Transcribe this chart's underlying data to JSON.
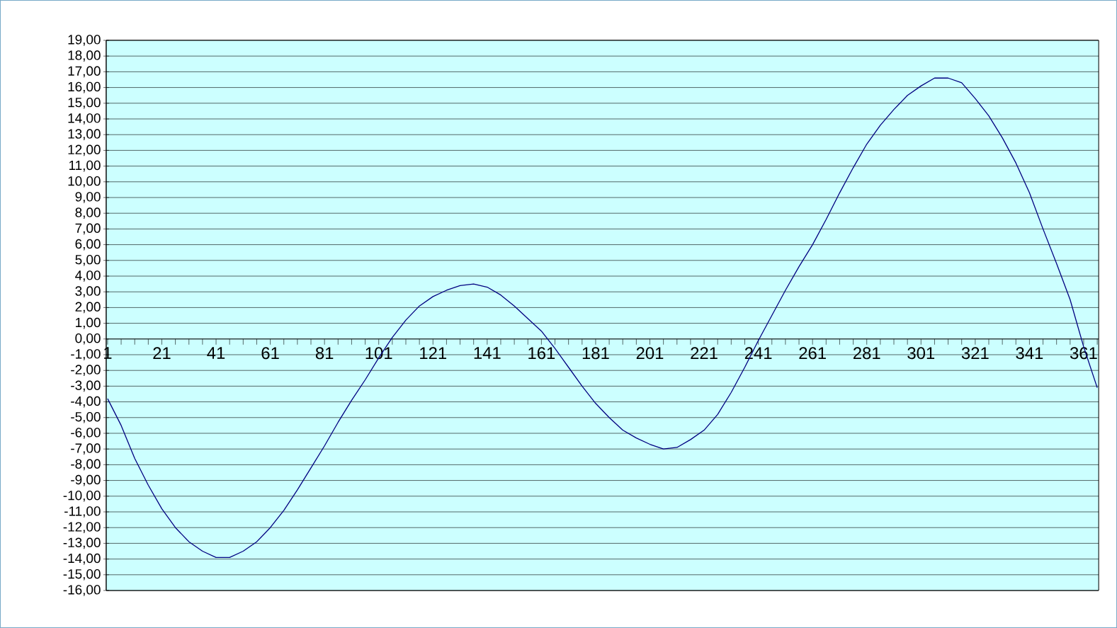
{
  "chart_data": {
    "type": "line",
    "x": [
      1,
      6,
      11,
      16,
      21,
      26,
      31,
      36,
      41,
      46,
      51,
      56,
      61,
      66,
      71,
      76,
      81,
      86,
      91,
      96,
      101,
      106,
      111,
      116,
      121,
      126,
      131,
      136,
      141,
      146,
      151,
      156,
      161,
      166,
      171,
      176,
      181,
      186,
      191,
      196,
      201,
      206,
      211,
      216,
      221,
      226,
      231,
      236,
      241,
      246,
      251,
      256,
      261,
      266,
      271,
      276,
      281,
      286,
      291,
      296,
      301,
      306,
      311,
      316,
      321,
      326,
      331,
      336,
      341,
      346,
      351,
      356,
      361,
      366
    ],
    "series": [
      {
        "color": "#000080",
        "values": [
          -3.8,
          -5.5,
          -7.6,
          -9.3,
          -10.8,
          -12.0,
          -12.9,
          -13.5,
          -13.9,
          -13.9,
          -13.5,
          -12.9,
          -12.0,
          -10.9,
          -9.6,
          -8.2,
          -6.8,
          -5.3,
          -3.9,
          -2.6,
          -1.2,
          0.1,
          1.2,
          2.1,
          2.7,
          3.1,
          3.4,
          3.5,
          3.3,
          2.8,
          2.1,
          1.3,
          0.5,
          -0.6,
          -1.8,
          -3.0,
          -4.1,
          -5.0,
          -5.8,
          -6.3,
          -6.7,
          -7.0,
          -6.9,
          -6.4,
          -5.8,
          -4.8,
          -3.4,
          -1.8,
          -0.1,
          1.5,
          3.1,
          4.6,
          6.0,
          7.6,
          9.3,
          10.9,
          12.4,
          13.6,
          14.6,
          15.5,
          16.1,
          16.6,
          16.6,
          16.3,
          15.3,
          14.2,
          12.8,
          11.2,
          9.3,
          7.0,
          4.8,
          2.5,
          -0.5,
          -3.1
        ]
      }
    ],
    "xlim": [
      0.5,
      366.5
    ],
    "ylim": [
      -16,
      19
    ],
    "xticks": [
      1,
      {
        "value": 6,
        "label": null
      },
      {
        "value": 11,
        "label": null
      },
      {
        "value": 16,
        "label": null
      },
      21,
      {
        "value": 26,
        "label": null
      },
      {
        "value": 31,
        "label": null
      },
      {
        "value": 36,
        "label": null
      },
      41,
      {
        "value": 46,
        "label": null
      },
      {
        "value": 51,
        "label": null
      },
      {
        "value": 56,
        "label": null
      },
      61,
      {
        "value": 66,
        "label": null
      },
      {
        "value": 71,
        "label": null
      },
      {
        "value": 76,
        "label": null
      },
      81,
      {
        "value": 86,
        "label": null
      },
      {
        "value": 91,
        "label": null
      },
      {
        "value": 96,
        "label": null
      },
      101,
      {
        "value": 106,
        "label": null
      },
      {
        "value": 111,
        "label": null
      },
      {
        "value": 116,
        "label": null
      },
      121,
      {
        "value": 126,
        "label": null
      },
      {
        "value": 131,
        "label": null
      },
      {
        "value": 136,
        "label": null
      },
      141,
      {
        "value": 146,
        "label": null
      },
      {
        "value": 151,
        "label": null
      },
      {
        "value": 156,
        "label": null
      },
      161,
      {
        "value": 166,
        "label": null
      },
      {
        "value": 171,
        "label": null
      },
      {
        "value": 176,
        "label": null
      },
      181,
      {
        "value": 186,
        "label": null
      },
      {
        "value": 191,
        "label": null
      },
      {
        "value": 196,
        "label": null
      },
      201,
      {
        "value": 206,
        "label": null
      },
      {
        "value": 211,
        "label": null
      },
      {
        "value": 216,
        "label": null
      },
      221,
      {
        "value": 226,
        "label": null
      },
      {
        "value": 231,
        "label": null
      },
      {
        "value": 236,
        "label": null
      },
      241,
      {
        "value": 246,
        "label": null
      },
      {
        "value": 251,
        "label": null
      },
      {
        "value": 256,
        "label": null
      },
      261,
      {
        "value": 266,
        "label": null
      },
      {
        "value": 271,
        "label": null
      },
      {
        "value": 276,
        "label": null
      },
      281,
      {
        "value": 286,
        "label": null
      },
      {
        "value": 291,
        "label": null
      },
      {
        "value": 296,
        "label": null
      },
      301,
      {
        "value": 306,
        "label": null
      },
      {
        "value": 311,
        "label": null
      },
      {
        "value": 316,
        "label": null
      },
      321,
      {
        "value": 326,
        "label": null
      },
      {
        "value": 331,
        "label": null
      },
      {
        "value": 336,
        "label": null
      },
      341,
      {
        "value": 346,
        "label": null
      },
      {
        "value": 351,
        "label": null
      },
      {
        "value": 356,
        "label": null
      },
      361,
      {
        "value": 366,
        "label": null
      }
    ],
    "yticks": [
      {
        "value": 19,
        "label": "19,00"
      },
      {
        "value": 18,
        "label": "18,00"
      },
      {
        "value": 17,
        "label": "17,00"
      },
      {
        "value": 16,
        "label": "16,00"
      },
      {
        "value": 15,
        "label": "15,00"
      },
      {
        "value": 14,
        "label": "14,00"
      },
      {
        "value": 13,
        "label": "13,00"
      },
      {
        "value": 12,
        "label": "12,00"
      },
      {
        "value": 11,
        "label": "11,00"
      },
      {
        "value": 10,
        "label": "10,00"
      },
      {
        "value": 9,
        "label": "9,00"
      },
      {
        "value": 8,
        "label": "8,00"
      },
      {
        "value": 7,
        "label": "7,00"
      },
      {
        "value": 6,
        "label": "6,00"
      },
      {
        "value": 5,
        "label": "5,00"
      },
      {
        "value": 4,
        "label": "4,00"
      },
      {
        "value": 3,
        "label": "3,00"
      },
      {
        "value": 2,
        "label": "2,00"
      },
      {
        "value": 1,
        "label": "1,00"
      },
      {
        "value": 0,
        "label": "0,00"
      },
      {
        "value": -1,
        "label": "-1,00"
      },
      {
        "value": -2,
        "label": "-2,00"
      },
      {
        "value": -3,
        "label": "-3,00"
      },
      {
        "value": -4,
        "label": "-4,00"
      },
      {
        "value": -5,
        "label": "-5,00"
      },
      {
        "value": -6,
        "label": "-6,00"
      },
      {
        "value": -7,
        "label": "-7,00"
      },
      {
        "value": -8,
        "label": "-8,00"
      },
      {
        "value": -9,
        "label": "-9,00"
      },
      {
        "value": -10,
        "label": "-10,00"
      },
      {
        "value": -11,
        "label": "-11,00"
      },
      {
        "value": -12,
        "label": "-12,00"
      },
      {
        "value": -13,
        "label": "-13,00"
      },
      {
        "value": -14,
        "label": "-14,00"
      },
      {
        "value": -15,
        "label": "-15,00"
      },
      {
        "value": -16,
        "label": "-16,00"
      }
    ],
    "grid": "y"
  }
}
